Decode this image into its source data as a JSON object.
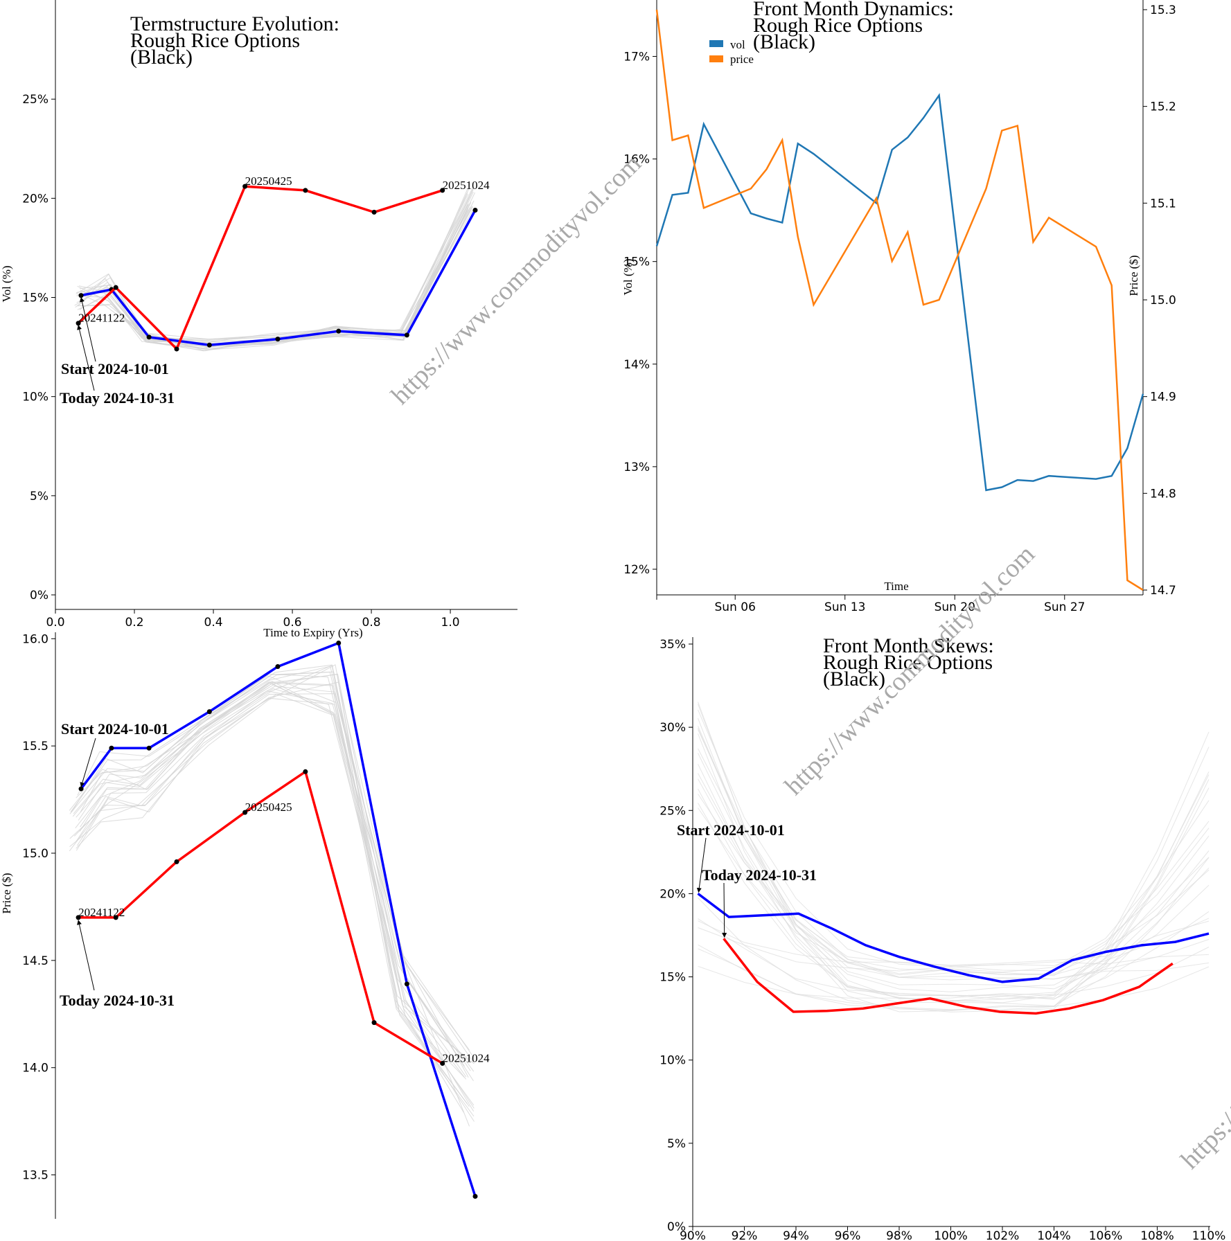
{
  "watermark": "https://www.commodityvol.com",
  "chart_data": [
    {
      "id": "termstructure",
      "type": "line",
      "title": [
        "Termstructure Evolution:",
        "Rough Rice Options",
        "(Black)"
      ],
      "xlabel": "Time to Expiry (Yrs)",
      "ylabel": "Vol (%)",
      "xlim": [
        0,
        1.17
      ],
      "ylim": [
        0,
        30
      ],
      "xticks": [
        0.0,
        0.2,
        0.4,
        0.6,
        0.8,
        1.0
      ],
      "xtick_labels": [
        "0.0",
        "0.2",
        "0.4",
        "0.6",
        "0.8",
        "1.0"
      ],
      "yticks": [
        0,
        5,
        10,
        15,
        20,
        25
      ],
      "ytick_labels": [
        "0%",
        "5%",
        "10%",
        "15%",
        "20%",
        "25%"
      ],
      "series": [
        {
          "name": "Start 2024-10-01",
          "color": "#0000ff",
          "x": [
            0.065,
            0.142,
            0.237,
            0.39,
            0.563,
            0.717,
            0.89,
            1.063
          ],
          "y": [
            15.1,
            15.4,
            13.0,
            12.6,
            12.9,
            13.3,
            13.1,
            19.4
          ]
        },
        {
          "name": "Today 2024-10-31",
          "color": "#ff0000",
          "x": [
            0.058,
            0.153,
            0.307,
            0.48,
            0.633,
            0.807,
            0.98
          ],
          "y": [
            13.7,
            15.5,
            12.4,
            20.6,
            20.4,
            19.3,
            20.4
          ]
        }
      ],
      "point_labels": [
        {
          "text": "20241122",
          "x": 0.058,
          "y": 13.7
        },
        {
          "text": "20250425",
          "x": 0.48,
          "y": 20.6
        },
        {
          "text": "20251024",
          "x": 0.98,
          "y": 20.4
        }
      ],
      "annotations": [
        {
          "text": "Start 2024-10-01",
          "target_x": 0.065,
          "target_y": 15.1
        },
        {
          "text": "Today 2024-10-31",
          "target_x": 0.058,
          "target_y": 13.7
        }
      ]
    },
    {
      "id": "front-month-dynamics",
      "type": "line",
      "title": [
        "Front Month Dynamics:",
        "Rough Rice Options",
        "(Black)"
      ],
      "xlabel": "Time",
      "ylabel": "Vol (%)",
      "y2label": "Price ($)",
      "x_domain_days": [
        1,
        31
      ],
      "xticks": [
        6,
        13,
        20,
        27
      ],
      "xtick_labels": [
        "Sun 06",
        "Sun 13",
        "Sun 20",
        "Sun 27"
      ],
      "ylim": [
        11.75,
        17.55
      ],
      "yticks": [
        12,
        13,
        14,
        15,
        16,
        17
      ],
      "ytick_labels": [
        "12%",
        "13%",
        "14%",
        "15%",
        "16%",
        "17%"
      ],
      "y2lim": [
        14.695,
        15.31
      ],
      "y2ticks": [
        14.7,
        14.8,
        14.9,
        15.0,
        15.1,
        15.2,
        15.3
      ],
      "y2tick_labels": [
        "14.7",
        "14.8",
        "14.9",
        "15.0",
        "15.1",
        "15.2",
        "15.3"
      ],
      "legend": [
        "vol",
        "price"
      ],
      "series": [
        {
          "name": "vol",
          "color": "#1f77b4",
          "axis": "left",
          "x": [
            1,
            2,
            3,
            4,
            7,
            8,
            9,
            10,
            11,
            15,
            16,
            17,
            18,
            19,
            22,
            23,
            24,
            25,
            26,
            29,
            30,
            31,
            32
          ],
          "y": [
            15.15,
            15.65,
            15.67,
            16.34,
            15.47,
            15.42,
            15.38,
            16.15,
            16.05,
            15.57,
            16.09,
            16.21,
            16.4,
            16.62,
            12.77,
            12.8,
            12.87,
            12.86,
            12.91,
            12.88,
            12.91,
            13.18,
            13.71
          ]
        },
        {
          "name": "price",
          "color": "#ff7f0e",
          "axis": "right",
          "x": [
            1,
            2,
            3,
            4,
            7,
            8,
            9,
            10,
            11,
            15,
            16,
            17,
            18,
            19,
            22,
            23,
            24,
            25,
            26,
            29,
            30,
            31,
            32
          ],
          "y": [
            15.3,
            15.165,
            15.17,
            15.095,
            15.115,
            15.135,
            15.165,
            15.065,
            14.995,
            15.105,
            15.04,
            15.07,
            14.995,
            15.0,
            15.115,
            15.175,
            15.18,
            15.06,
            15.085,
            15.055,
            15.015,
            14.71,
            14.7
          ]
        }
      ]
    },
    {
      "id": "price-termstructure",
      "type": "line",
      "ylabel": "Price ($)",
      "xlim": [
        0,
        1.17
      ],
      "ylim": [
        13.35,
        16.03
      ],
      "yticks": [
        13.5,
        14.0,
        14.5,
        15.0,
        15.5,
        16.0
      ],
      "ytick_labels": [
        "13.5",
        "14.0",
        "14.5",
        "15.0",
        "15.5",
        "16.0"
      ],
      "series": [
        {
          "name": "Start 2024-10-01",
          "color": "#0000ff",
          "x": [
            0.065,
            0.142,
            0.237,
            0.39,
            0.563,
            0.717,
            0.89,
            1.063
          ],
          "y": [
            15.3,
            15.49,
            15.49,
            15.66,
            15.87,
            15.98,
            14.39,
            13.4
          ]
        },
        {
          "name": "Today 2024-10-31",
          "color": "#ff0000",
          "x": [
            0.058,
            0.153,
            0.307,
            0.48,
            0.633,
            0.807,
            0.98
          ],
          "y": [
            14.7,
            14.7,
            14.96,
            15.19,
            15.38,
            14.21,
            14.02
          ]
        }
      ],
      "point_labels": [
        {
          "text": "20241122",
          "x": 0.058,
          "y": 14.7
        },
        {
          "text": "20250425",
          "x": 0.48,
          "y": 15.19
        },
        {
          "text": "20251024",
          "x": 0.98,
          "y": 14.02
        }
      ],
      "annotations": [
        {
          "text": "Start 2024-10-01",
          "target_x": 0.065,
          "target_y": 15.3
        },
        {
          "text": "Today 2024-10-31",
          "target_x": 0.058,
          "target_y": 14.7
        }
      ]
    },
    {
      "id": "front-month-skews",
      "type": "line",
      "title": [
        "Front Month Skews:",
        "Rough Rice Options",
        "(Black)"
      ],
      "xlim": [
        90,
        110
      ],
      "ylim": [
        0,
        35
      ],
      "xticks": [
        90,
        92,
        94,
        96,
        98,
        100,
        102,
        104,
        106,
        108,
        110
      ],
      "xtick_labels": [
        "90%",
        "92%",
        "94%",
        "96%",
        "98%",
        "100%",
        "102%",
        "104%",
        "106%",
        "108%",
        "110%"
      ],
      "yticks": [
        0,
        5,
        10,
        15,
        20,
        25,
        30,
        35
      ],
      "ytick_labels": [
        "0%",
        "5%",
        "10%",
        "15%",
        "20%",
        "25%",
        "30%",
        "35%"
      ],
      "series": [
        {
          "name": "Start 2024-10-01",
          "color": "#0000ff",
          "x": [
            90.2,
            91.4,
            92.7,
            94.1,
            95.4,
            96.7,
            98.0,
            99.4,
            100.7,
            102.0,
            103.4,
            104.7,
            106.0,
            107.4,
            108.7,
            110.0
          ],
          "y": [
            20.0,
            18.6,
            18.7,
            18.8,
            17.9,
            16.9,
            16.2,
            15.6,
            15.1,
            14.7,
            14.9,
            16.0,
            16.5,
            16.9,
            17.1,
            17.6
          ]
        },
        {
          "name": "Today 2024-10-31",
          "color": "#ff0000",
          "x": [
            91.2,
            92.5,
            93.9,
            95.2,
            96.6,
            97.9,
            99.2,
            100.6,
            101.9,
            103.3,
            104.6,
            105.9,
            107.3,
            108.6
          ],
          "y": [
            17.3,
            14.7,
            12.9,
            12.95,
            13.1,
            13.4,
            13.7,
            13.2,
            12.9,
            12.8,
            13.1,
            13.6,
            14.4,
            15.8
          ]
        }
      ],
      "annotations": [
        {
          "text": "Start 2024-10-01",
          "target_x": 90.2,
          "target_y": 20.0
        },
        {
          "text": "Today 2024-10-31",
          "target_x": 91.2,
          "target_y": 17.3
        }
      ]
    }
  ]
}
